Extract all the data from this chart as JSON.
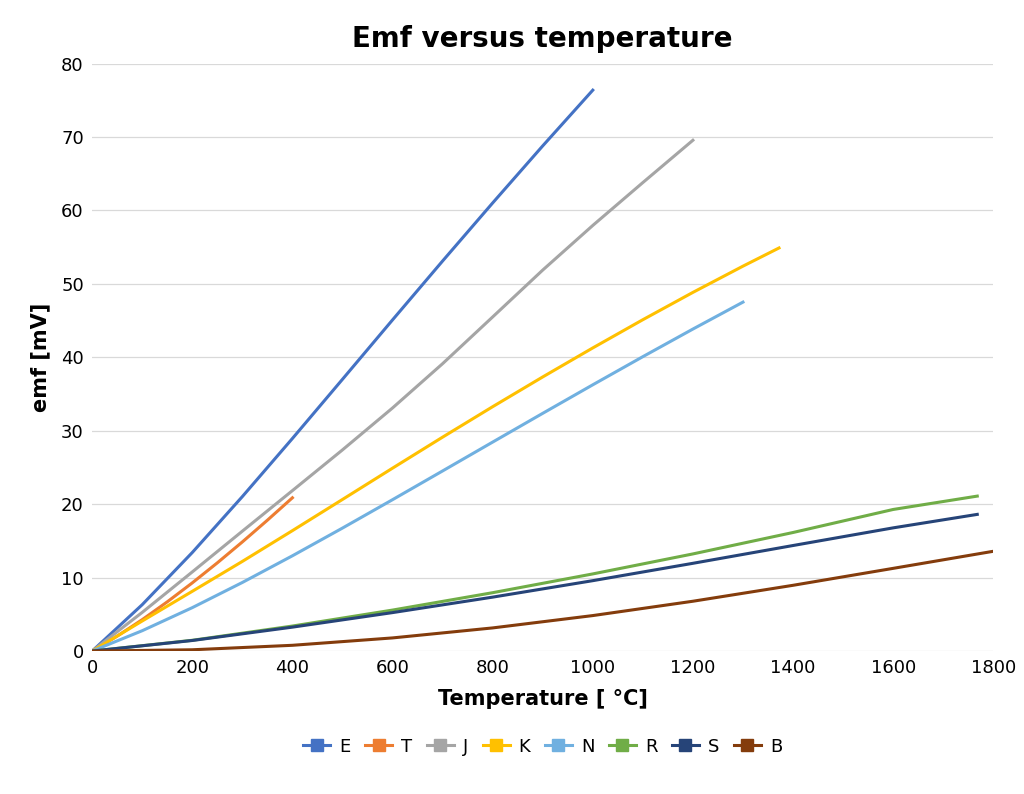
{
  "title": "Emf versus temperature",
  "xlabel": "Temperature [ °C]",
  "ylabel": "emf [mV]",
  "xlim": [
    0,
    1800
  ],
  "ylim": [
    0,
    80
  ],
  "xticks": [
    0,
    200,
    400,
    600,
    800,
    1000,
    1200,
    1400,
    1600,
    1800
  ],
  "yticks": [
    0,
    10,
    20,
    30,
    40,
    50,
    60,
    70,
    80
  ],
  "series": [
    {
      "label": "E",
      "color": "#4472C4",
      "x": [
        0,
        100,
        200,
        300,
        400,
        500,
        600,
        700,
        800,
        900,
        1000
      ],
      "y": [
        0.0,
        6.319,
        13.421,
        21.036,
        28.946,
        37.005,
        45.093,
        53.112,
        61.017,
        68.787,
        76.373
      ]
    },
    {
      "label": "T",
      "color": "#ED7D31",
      "x": [
        0,
        50,
        100,
        150,
        200,
        250,
        300,
        350,
        400
      ],
      "y": [
        0.0,
        2.036,
        4.279,
        6.704,
        9.288,
        12.013,
        14.862,
        17.819,
        20.872
      ]
    },
    {
      "label": "J",
      "color": "#A5A5A5",
      "x": [
        0,
        100,
        200,
        300,
        400,
        500,
        600,
        700,
        800,
        900,
        1000,
        1100,
        1200
      ],
      "y": [
        0.0,
        5.269,
        10.779,
        16.327,
        21.848,
        27.393,
        33.102,
        39.132,
        45.494,
        51.877,
        57.953,
        63.792,
        69.553
      ]
    },
    {
      "label": "K",
      "color": "#FFC000",
      "x": [
        0,
        100,
        200,
        300,
        400,
        500,
        600,
        700,
        800,
        900,
        1000,
        1100,
        1200,
        1300,
        1372
      ],
      "y": [
        0.0,
        4.096,
        8.138,
        12.209,
        16.397,
        20.644,
        24.905,
        29.129,
        33.275,
        37.326,
        41.276,
        45.119,
        48.838,
        52.41,
        54.886
      ]
    },
    {
      "label": "N",
      "color": "#70B0E0",
      "x": [
        0,
        100,
        200,
        300,
        400,
        500,
        600,
        700,
        800,
        900,
        1000,
        1100,
        1200,
        1300
      ],
      "y": [
        0.0,
        2.774,
        5.913,
        9.341,
        12.974,
        16.748,
        20.613,
        24.527,
        28.455,
        32.371,
        36.256,
        40.087,
        43.846,
        47.513
      ]
    },
    {
      "label": "R",
      "color": "#70AD47",
      "x": [
        0,
        200,
        400,
        600,
        800,
        1000,
        1200,
        1400,
        1600,
        1768
      ],
      "y": [
        0.0,
        1.469,
        3.408,
        5.583,
        7.95,
        10.506,
        13.228,
        16.146,
        19.281,
        21.101
      ]
    },
    {
      "label": "S",
      "color": "#264478",
      "x": [
        0,
        200,
        400,
        600,
        800,
        1000,
        1200,
        1400,
        1600,
        1768
      ],
      "y": [
        0.0,
        1.441,
        3.259,
        5.239,
        7.345,
        9.587,
        11.951,
        14.373,
        16.777,
        18.612
      ]
    },
    {
      "label": "B",
      "color": "#843C0C",
      "x": [
        0,
        200,
        400,
        600,
        800,
        1000,
        1200,
        1400,
        1600,
        1820
      ],
      "y": [
        0.0,
        0.178,
        0.787,
        1.792,
        3.154,
        4.834,
        6.786,
        8.956,
        11.263,
        13.82
      ]
    }
  ],
  "legend_fontsize": 13,
  "title_fontsize": 20,
  "axis_label_fontsize": 15,
  "tick_fontsize": 13,
  "line_width": 2.2,
  "bg_color": "#FFFFFF",
  "grid_color": "#D9D9D9"
}
